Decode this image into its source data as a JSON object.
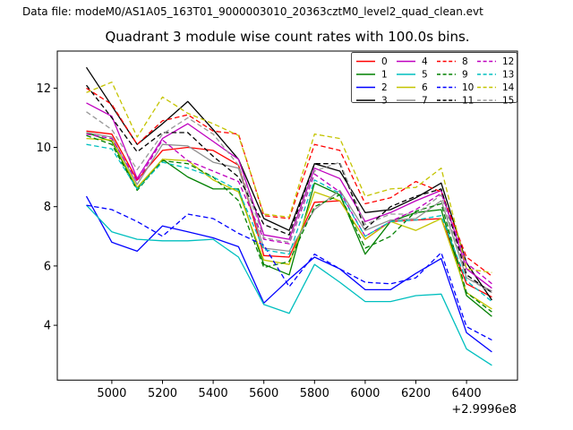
{
  "header": {
    "data_file_label": "Data file: modeM0/AS1A05_163T01_9000003010_20363cztM0_level2_quad_clean.evt"
  },
  "chart_data": {
    "type": "line",
    "title": "Quadrant 3 module wise count rates with 100.0s bins.",
    "xlabel": "",
    "ylabel": "",
    "x_offset_label": "+2.9996e8",
    "xlim": [
      4785,
      6601
    ],
    "ylim": [
      2.15,
      13.25
    ],
    "grid": false,
    "legend_position": "upper right",
    "xticks": [
      5000,
      5200,
      5400,
      5600,
      5800,
      6000,
      6200,
      6400
    ],
    "yticks": [
      4,
      6,
      8,
      10,
      12
    ],
    "x": [
      4900,
      5000,
      5100,
      5200,
      5300,
      5400,
      5500,
      5600,
      5700,
      5800,
      5900,
      6000,
      6100,
      6200,
      6300,
      6400,
      6500
    ],
    "series": [
      {
        "label": "0",
        "color": "#ff0000",
        "dash": false,
        "values": [
          10.55,
          10.45,
          8.9,
          9.9,
          10.0,
          9.9,
          9.4,
          6.35,
          6.3,
          8.15,
          8.2,
          6.9,
          7.5,
          7.55,
          7.6,
          5.4,
          4.95
        ]
      },
      {
        "label": "1",
        "color": "#008000",
        "dash": false,
        "values": [
          10.5,
          10.2,
          8.6,
          9.6,
          9.0,
          8.6,
          8.6,
          6.05,
          5.7,
          8.8,
          8.4,
          6.4,
          7.5,
          7.8,
          7.9,
          5.0,
          4.3
        ]
      },
      {
        "label": "2",
        "color": "#0000ff",
        "dash": false,
        "values": [
          8.35,
          6.8,
          6.5,
          7.35,
          7.15,
          6.95,
          6.65,
          4.75,
          5.55,
          6.3,
          5.9,
          5.2,
          5.2,
          5.75,
          6.25,
          3.75,
          3.1
        ]
      },
      {
        "label": "3",
        "color": "#000000",
        "dash": false,
        "values": [
          12.7,
          11.4,
          10.1,
          10.8,
          11.55,
          10.6,
          9.6,
          7.6,
          7.2,
          9.45,
          9.2,
          7.8,
          7.9,
          8.3,
          8.8,
          6.1,
          4.85
        ]
      },
      {
        "label": "4",
        "color": "#bf00bf",
        "dash": false,
        "values": [
          11.5,
          11.05,
          8.95,
          10.3,
          10.8,
          10.2,
          9.6,
          7.05,
          6.9,
          9.3,
          8.95,
          7.5,
          7.8,
          8.2,
          8.55,
          5.9,
          5.25
        ]
      },
      {
        "label": "5",
        "color": "#00bfbf",
        "dash": false,
        "values": [
          8.05,
          7.15,
          6.9,
          6.85,
          6.85,
          6.9,
          6.3,
          4.7,
          4.4,
          6.05,
          5.45,
          4.8,
          4.8,
          5.0,
          5.05,
          3.2,
          2.65
        ]
      },
      {
        "label": "6",
        "color": "#c4c400",
        "dash": false,
        "values": [
          10.3,
          10.25,
          8.65,
          9.6,
          9.55,
          8.9,
          8.5,
          6.2,
          6.05,
          8.5,
          8.2,
          6.9,
          7.5,
          7.2,
          7.6,
          5.1,
          4.55
        ]
      },
      {
        "label": "7",
        "color": "#909090",
        "dash": false,
        "values": [
          10.5,
          10.35,
          8.75,
          10.1,
          10.05,
          9.5,
          9.3,
          6.6,
          6.5,
          7.9,
          8.55,
          7.2,
          7.55,
          7.6,
          8.2,
          5.6,
          5.15
        ]
      },
      {
        "label": "8",
        "color": "#ff0000",
        "dash": true,
        "values": [
          12.0,
          11.45,
          10.1,
          10.9,
          11.1,
          10.55,
          10.45,
          7.7,
          7.6,
          10.1,
          9.9,
          8.1,
          8.3,
          8.85,
          8.5,
          6.3,
          5.66
        ]
      },
      {
        "label": "9",
        "color": "#008000",
        "dash": true,
        "values": [
          10.4,
          10.1,
          8.55,
          9.55,
          9.45,
          9.0,
          8.2,
          5.95,
          6.15,
          8.0,
          8.4,
          6.6,
          7.0,
          7.85,
          8.1,
          5.1,
          4.45
        ]
      },
      {
        "label": "10",
        "color": "#0000ff",
        "dash": true,
        "values": [
          8.05,
          7.9,
          7.5,
          7.0,
          7.75,
          7.6,
          7.1,
          6.7,
          5.3,
          6.4,
          5.9,
          5.45,
          5.4,
          5.6,
          6.45,
          3.95,
          3.5
        ]
      },
      {
        "label": "11",
        "color": "#000000",
        "dash": true,
        "values": [
          12.1,
          11.0,
          9.85,
          10.5,
          10.5,
          9.7,
          9.0,
          7.4,
          7.05,
          9.45,
          9.45,
          7.25,
          8.0,
          8.35,
          8.6,
          5.7,
          5.1
        ]
      },
      {
        "label": "12",
        "color": "#bf00bf",
        "dash": true,
        "values": [
          10.45,
          10.3,
          8.85,
          10.25,
          9.55,
          9.2,
          8.85,
          6.9,
          6.75,
          9.1,
          8.5,
          7.0,
          7.5,
          7.9,
          8.45,
          6.1,
          5.4
        ]
      },
      {
        "label": "13",
        "color": "#00bfbf",
        "dash": true,
        "values": [
          10.1,
          9.95,
          8.6,
          9.5,
          9.3,
          9.0,
          8.55,
          6.55,
          6.4,
          8.9,
          8.45,
          7.0,
          7.5,
          7.55,
          7.7,
          5.5,
          4.8
        ]
      },
      {
        "label": "14",
        "color": "#c4c400",
        "dash": true,
        "values": [
          11.85,
          12.2,
          10.35,
          11.7,
          11.15,
          10.8,
          10.4,
          7.75,
          7.65,
          10.45,
          10.3,
          8.35,
          8.6,
          8.65,
          9.3,
          5.9,
          5.78
        ]
      },
      {
        "label": "15",
        "color": "#999999",
        "dash": true,
        "values": [
          11.2,
          10.6,
          9.25,
          10.45,
          11.0,
          10.45,
          9.4,
          6.95,
          6.8,
          9.2,
          9.5,
          7.4,
          7.75,
          7.75,
          8.4,
          5.6,
          5.1
        ]
      }
    ]
  }
}
